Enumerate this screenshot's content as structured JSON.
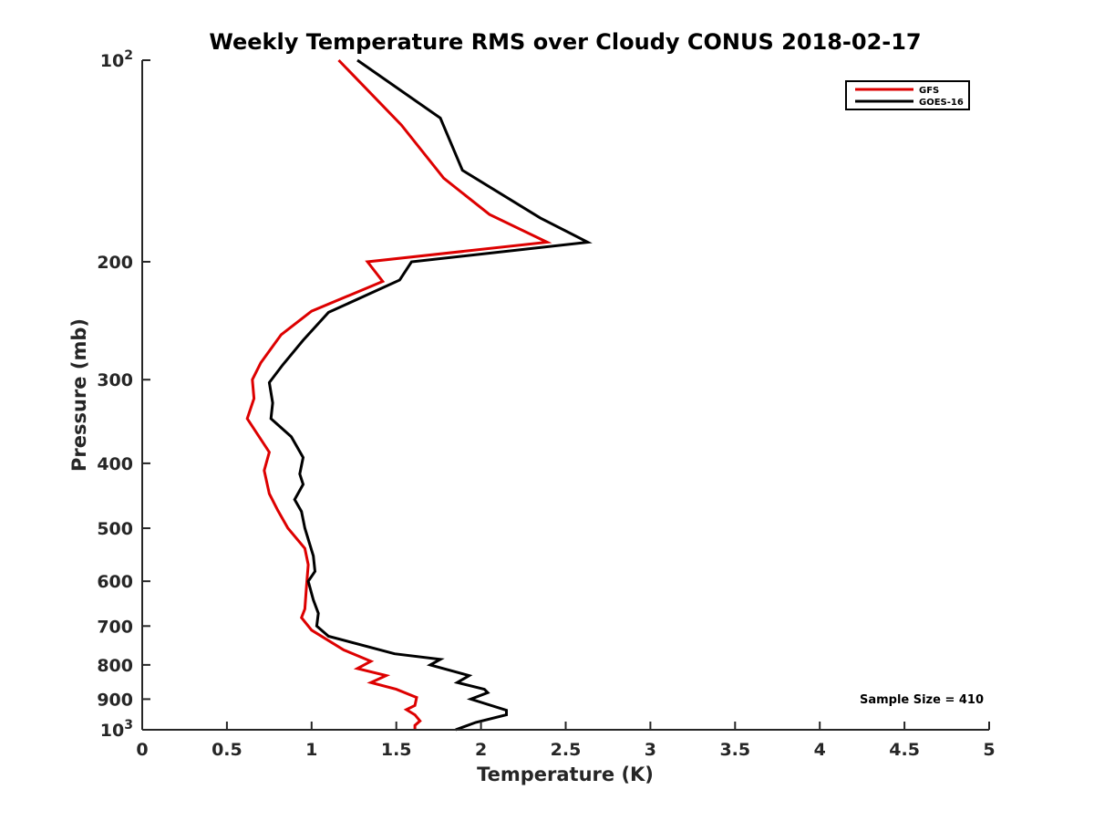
{
  "chart_data": {
    "type": "line",
    "title": "Weekly Temperature RMS over Cloudy CONUS 2018-02-17",
    "xlabel": "Temperature (K)",
    "ylabel": "Pressure (mb)",
    "xlim": [
      0,
      5
    ],
    "ylim": [
      100,
      1000
    ],
    "y_scale": "log",
    "y_reversed": true,
    "x_ticks": [
      0,
      0.5,
      1,
      1.5,
      2,
      2.5,
      3,
      3.5,
      4,
      4.5,
      5
    ],
    "x_tick_labels": [
      "0",
      "0.5",
      "1",
      "1.5",
      "2",
      "2.5",
      "3",
      "3.5",
      "4",
      "4.5",
      "5"
    ],
    "y_ticks": [
      100,
      200,
      300,
      400,
      500,
      600,
      700,
      800,
      900,
      1000
    ],
    "y_tick_labels": [
      {
        "base": "10",
        "exp": "2"
      },
      {
        "text": "200"
      },
      {
        "text": "300"
      },
      {
        "text": "400"
      },
      {
        "text": "500"
      },
      {
        "text": "600"
      },
      {
        "text": "700"
      },
      {
        "text": "800"
      },
      {
        "text": "900"
      },
      {
        "base": "10",
        "exp": "3"
      }
    ],
    "grid": false,
    "legend_position": "top-right",
    "series": [
      {
        "name": "GFS",
        "color": "#dd0000",
        "points": [
          [
            1.16,
            100
          ],
          [
            1.53,
            125
          ],
          [
            1.78,
            150
          ],
          [
            2.05,
            170
          ],
          [
            2.39,
            187
          ],
          [
            1.33,
            200
          ],
          [
            1.42,
            214
          ],
          [
            1.0,
            237
          ],
          [
            0.82,
            257
          ],
          [
            0.7,
            283
          ],
          [
            0.65,
            300
          ],
          [
            0.66,
            320
          ],
          [
            0.62,
            343
          ],
          [
            0.75,
            385
          ],
          [
            0.72,
            410
          ],
          [
            0.75,
            444
          ],
          [
            0.8,
            470
          ],
          [
            0.86,
            500
          ],
          [
            0.96,
            536
          ],
          [
            0.98,
            567
          ],
          [
            0.97,
            610
          ],
          [
            0.96,
            660
          ],
          [
            0.94,
            680
          ],
          [
            1.0,
            710
          ],
          [
            1.19,
            760
          ],
          [
            1.35,
            790
          ],
          [
            1.27,
            810
          ],
          [
            1.44,
            830
          ],
          [
            1.35,
            850
          ],
          [
            1.5,
            870
          ],
          [
            1.62,
            895
          ],
          [
            1.61,
            920
          ],
          [
            1.56,
            933
          ],
          [
            1.61,
            950
          ],
          [
            1.64,
            970
          ],
          [
            1.61,
            985
          ],
          [
            1.61,
            1000
          ]
        ]
      },
      {
        "name": "GOES-16",
        "color": "#000000",
        "points": [
          [
            1.27,
            100
          ],
          [
            1.76,
            122
          ],
          [
            1.89,
            146
          ],
          [
            2.35,
            172
          ],
          [
            2.63,
            187
          ],
          [
            1.59,
            200
          ],
          [
            1.52,
            213
          ],
          [
            1.1,
            238
          ],
          [
            0.95,
            262
          ],
          [
            0.83,
            285
          ],
          [
            0.75,
            303
          ],
          [
            0.77,
            325
          ],
          [
            0.76,
            343
          ],
          [
            0.88,
            365
          ],
          [
            0.95,
            392
          ],
          [
            0.93,
            415
          ],
          [
            0.95,
            430
          ],
          [
            0.9,
            453
          ],
          [
            0.94,
            472
          ],
          [
            0.96,
            500
          ],
          [
            1.01,
            550
          ],
          [
            1.02,
            580
          ],
          [
            0.98,
            600
          ],
          [
            1.01,
            640
          ],
          [
            1.04,
            670
          ],
          [
            1.03,
            700
          ],
          [
            1.1,
            725
          ],
          [
            1.49,
            770
          ],
          [
            1.76,
            785
          ],
          [
            1.7,
            800
          ],
          [
            1.93,
            830
          ],
          [
            1.86,
            850
          ],
          [
            2.02,
            870
          ],
          [
            2.04,
            880
          ],
          [
            1.94,
            900
          ],
          [
            2.15,
            935
          ],
          [
            2.15,
            950
          ],
          [
            1.97,
            975
          ],
          [
            1.85,
            1000
          ]
        ]
      }
    ],
    "annotation": "Sample Size = 410"
  }
}
